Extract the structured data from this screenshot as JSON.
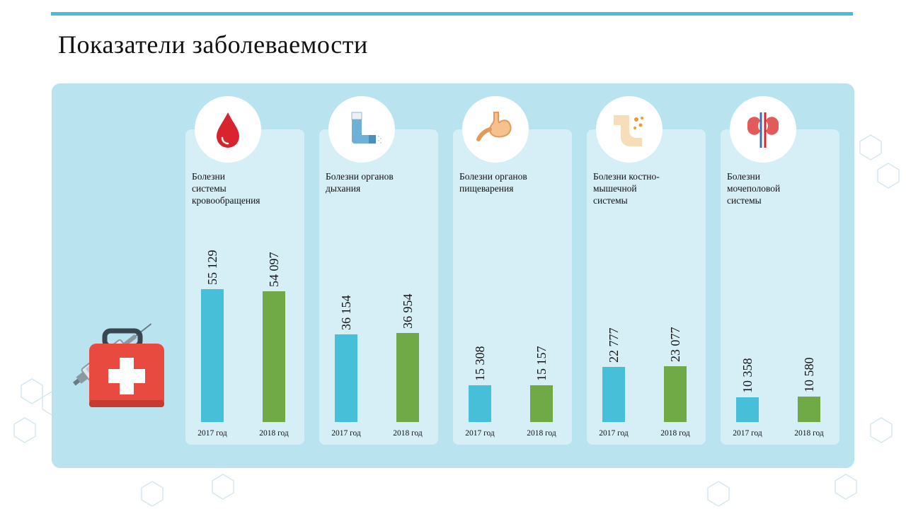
{
  "title": "Показатели заболеваемости",
  "colors": {
    "accent": "#4bbcd5",
    "bar_2017": "#48bfd9",
    "bar_2018": "#6faa46",
    "panel": "#b9e3ef",
    "card": "#d6eef5"
  },
  "chart_data": {
    "type": "bar",
    "title": "Показатели заболеваемости",
    "series_names": [
      "2017 год",
      "2018 год"
    ],
    "groups": [
      {
        "category": "Болезни системы кровообращения",
        "label_lines": [
          "Болезни",
          "системы",
          "кровообращения"
        ],
        "icon": "blood-drop-icon",
        "values": [
          55129,
          54097
        ],
        "value_labels": [
          "55 129",
          "54 097"
        ]
      },
      {
        "category": "Болезни органов дыхания",
        "label_lines": [
          "Болезни органов",
          "дыхания"
        ],
        "icon": "inhaler-icon",
        "values": [
          36154,
          36954
        ],
        "value_labels": [
          "36 154",
          "36 954"
        ]
      },
      {
        "category": "Болезни органов пищеварения",
        "label_lines": [
          "Болезни органов",
          "пищеварения"
        ],
        "icon": "stomach-icon",
        "values": [
          15308,
          15157
        ],
        "value_labels": [
          "15 308",
          "15 157"
        ]
      },
      {
        "category": "Болезни костно-мышечной системы",
        "label_lines": [
          "Болезни костно-",
          "мышечной",
          "системы"
        ],
        "icon": "joint-pain-icon",
        "values": [
          22777,
          23077
        ],
        "value_labels": [
          "22 777",
          "23 077"
        ]
      },
      {
        "category": "Болезни мочеполовой системы",
        "label_lines": [
          "Болезни",
          "мочеполовой",
          "системы"
        ],
        "icon": "kidneys-icon",
        "values": [
          10358,
          10580
        ],
        "value_labels": [
          "10 358",
          "10 580"
        ]
      }
    ]
  }
}
